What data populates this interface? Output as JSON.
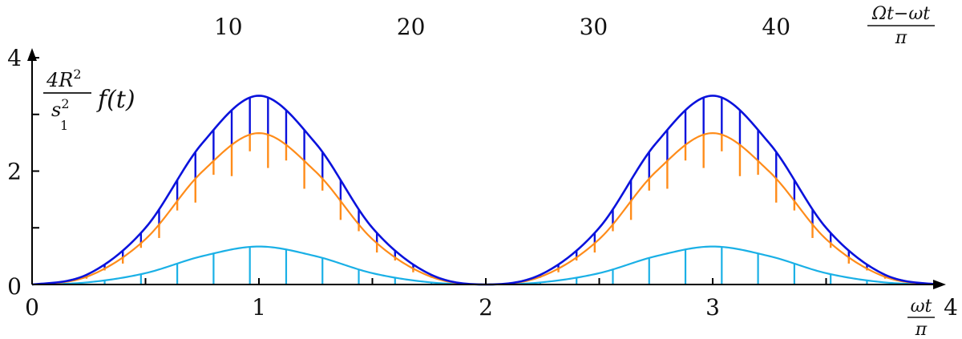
{
  "chart_data": {
    "type": "line",
    "x_bottom": {
      "range": [
        0,
        4
      ],
      "ticks": [
        "0",
        "1",
        "2",
        "3",
        "4"
      ],
      "tick_values": [
        0,
        1,
        2,
        3,
        4
      ]
    },
    "x_top": {
      "ticks": [
        "10",
        "20",
        "30",
        "40"
      ],
      "tick_values": [
        10,
        20,
        30,
        40
      ]
    },
    "y": {
      "range": [
        0,
        4
      ],
      "ticks": [
        "0",
        "2",
        "4"
      ],
      "tick_values": [
        0,
        2,
        4
      ],
      "minor_tick_values": [
        1,
        3
      ]
    },
    "labels": {
      "y_frac_num": "4R",
      "y_frac_num_sup": "2",
      "y_frac_den": "s",
      "y_frac_den_sup": "2",
      "y_frac_den_sub": "1",
      "y_func": "f(t)",
      "x_frac_num": "ωt",
      "x_frac_den": "π",
      "top_frac_num": "Ωt−ωt",
      "top_frac_den": "π"
    },
    "colors": {
      "outer": "#0a12dc",
      "middle": "#ff8c1a",
      "inner": "#1ab0e6",
      "axis": "#000000"
    },
    "series": [
      {
        "key": "outer",
        "x": [
          0,
          0.25,
          0.5,
          0.75,
          1,
          1.25,
          1.5,
          1.75,
          2,
          2.25,
          2.5,
          2.75,
          3,
          3.25,
          3.5,
          3.75,
          4
        ],
        "values": [
          0,
          0.19,
          1.0,
          2.49,
          3.33,
          2.49,
          1.0,
          0.19,
          0,
          0.19,
          1.0,
          2.49,
          3.33,
          2.49,
          1.0,
          0.19,
          0
        ]
      },
      {
        "key": "middle",
        "x": [
          0,
          0.25,
          0.5,
          0.75,
          1,
          1.25,
          1.5,
          1.75,
          2,
          2.25,
          2.5,
          2.75,
          3,
          3.25,
          3.5,
          3.75,
          4
        ],
        "values": [
          0,
          0.15,
          0.8,
          1.99,
          2.67,
          1.99,
          0.8,
          0.15,
          0,
          0.15,
          0.8,
          1.99,
          2.67,
          1.99,
          0.8,
          0.15,
          0
        ]
      },
      {
        "key": "inner",
        "x": [
          0,
          0.25,
          0.5,
          0.75,
          1,
          1.25,
          1.5,
          1.75,
          2,
          2.25,
          2.5,
          2.75,
          3,
          3.25,
          3.5,
          3.75,
          4
        ],
        "values": [
          0,
          0.04,
          0.2,
          0.5,
          0.67,
          0.5,
          0.2,
          0.04,
          0,
          0.04,
          0.2,
          0.5,
          0.67,
          0.5,
          0.2,
          0.04,
          0
        ]
      }
    ],
    "stems": {
      "outer_spacing": 0.08,
      "inner_spacing": 0.16
    }
  }
}
